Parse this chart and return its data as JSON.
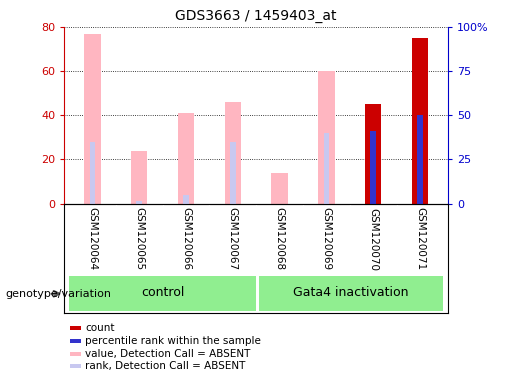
{
  "title": "GDS3663 / 1459403_at",
  "samples": [
    "GSM120064",
    "GSM120065",
    "GSM120066",
    "GSM120067",
    "GSM120068",
    "GSM120069",
    "GSM120070",
    "GSM120071"
  ],
  "pink_bar_heights": [
    77,
    24,
    41,
    46,
    14,
    60,
    0,
    0
  ],
  "light_blue_bar_heights": [
    28,
    1,
    4,
    28,
    0,
    32,
    0,
    0
  ],
  "red_bar_heights": [
    0,
    0,
    0,
    0,
    0,
    0,
    45,
    75
  ],
  "blue_bar_heights": [
    0,
    0,
    0,
    0,
    0,
    0,
    33,
    40
  ],
  "ylim_left": [
    0,
    80
  ],
  "ylim_right": [
    0,
    100
  ],
  "yticks_left": [
    0,
    20,
    40,
    60,
    80
  ],
  "yticks_right": [
    0,
    25,
    50,
    75,
    100
  ],
  "ytick_labels_right": [
    "0",
    "25",
    "50",
    "75",
    "100%"
  ],
  "left_axis_color": "#cc0000",
  "right_axis_color": "#0000cc",
  "gray_bg": "#d0d0d0",
  "green_bg": "#90EE90",
  "plot_bg_color": "#ffffff",
  "pink_color": "#ffb6c1",
  "light_blue_color": "#c8c8f0",
  "red_color": "#cc0000",
  "blue_color": "#3333cc",
  "group_labels": [
    "control",
    "Gata4 inactivation"
  ],
  "group_ranges": [
    [
      0,
      3
    ],
    [
      4,
      7
    ]
  ],
  "genotype_label": "genotype/variation",
  "legend_labels": [
    "count",
    "percentile rank within the sample",
    "value, Detection Call = ABSENT",
    "rank, Detection Call = ABSENT"
  ],
  "legend_colors": [
    "#cc0000",
    "#3333cc",
    "#ffb6c1",
    "#c8c8f0"
  ],
  "bar_width": 0.35,
  "narrow_bar_width": 0.12
}
